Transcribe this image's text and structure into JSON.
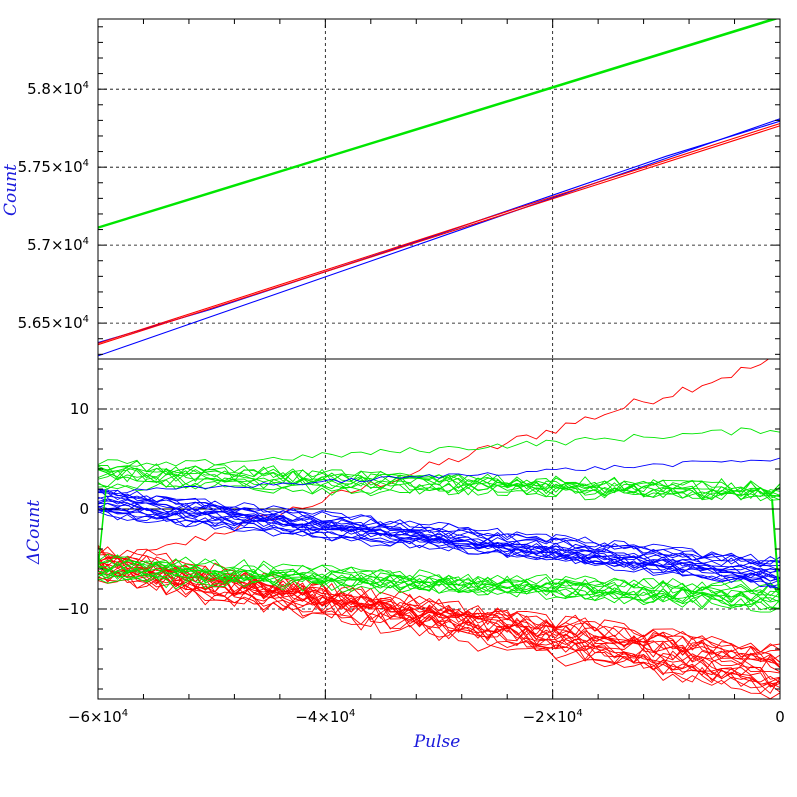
{
  "chart_data": [
    {
      "type": "line",
      "panel": "top",
      "ylabel": "Count",
      "xlim": [
        -60000,
        0
      ],
      "ylim": [
        56270,
        58450
      ],
      "grid": true,
      "y_ticks": [
        56500,
        57000,
        57500,
        58000
      ],
      "y_tick_labels": [
        {
          "m": "5.65×10",
          "e": "4"
        },
        {
          "m": "5.7×10",
          "e": "4"
        },
        {
          "m": "5.75×10",
          "e": "4"
        },
        {
          "m": "5.8×10",
          "e": "4"
        }
      ],
      "series": [
        {
          "color": "#00e600",
          "x": [
            -60000,
            0
          ],
          "y": [
            57115,
            58465
          ]
        },
        {
          "color": "#00e600",
          "x": [
            -60000,
            0
          ],
          "y": [
            57110,
            58458
          ]
        },
        {
          "color": "#0000ff",
          "x": [
            -60000,
            0
          ],
          "y": [
            56290,
            57810
          ]
        },
        {
          "color": "#0000ff",
          "x": [
            -60000,
            -50000,
            -40000,
            -30000,
            -20000,
            -10000,
            0
          ],
          "y": [
            56375,
            56590,
            56830,
            57070,
            57320,
            57570,
            57795
          ]
        },
        {
          "color": "#ff0000",
          "x": [
            -60000,
            0
          ],
          "y": [
            56370,
            57780
          ]
        },
        {
          "color": "#ff0000",
          "x": [
            -60000,
            0
          ],
          "y": [
            56362,
            57765
          ]
        }
      ]
    },
    {
      "type": "line",
      "panel": "bottom",
      "xlabel": "Pulse",
      "ylabel": "ΔCount",
      "xlim": [
        -60000,
        0
      ],
      "ylim": [
        -19,
        15
      ],
      "grid": true,
      "zero_line": true,
      "x_ticks": [
        -60000,
        -40000,
        -20000,
        0
      ],
      "x_tick_labels": [
        {
          "m": "−6×10",
          "e": "4"
        },
        {
          "m": "−4×10",
          "e": "4"
        },
        {
          "m": "−2×10",
          "e": "4"
        },
        {
          "m": "0",
          "e": ""
        }
      ],
      "y_ticks": [
        -10,
        0,
        10
      ],
      "y_tick_labels": [
        "−10",
        "0",
        "10"
      ],
      "series_groups": [
        {
          "color": "#ff0000",
          "count": 1,
          "start": [
            -6.2,
            -6.2
          ],
          "end": [
            15,
            15
          ],
          "noise": 0.6
        },
        {
          "color": "#ff0000",
          "count": 22,
          "start": [
            -7,
            -4
          ],
          "end": [
            -18.5,
            -14
          ],
          "noise": 0.9
        },
        {
          "color": "#00e600",
          "count": 1,
          "start": [
            3.8,
            3.8
          ],
          "end": [
            8,
            8
          ],
          "noise": 0.35
        },
        {
          "color": "#00e600",
          "count": 11,
          "start": [
            2.5,
            4.3
          ],
          "end": [
            0.8,
            2.3
          ],
          "noise": 0.7
        },
        {
          "color": "#00e600",
          "count": 13,
          "start": [
            -7,
            -5
          ],
          "end": [
            -9.8,
            -7.2
          ],
          "noise": 0.7
        },
        {
          "color": "#0000ff",
          "count": 1,
          "start": [
            1.5,
            1.5
          ],
          "end": [
            5,
            5
          ],
          "noise": 0.25
        },
        {
          "color": "#0000ff",
          "count": 20,
          "start": [
            -0.5,
            1.8
          ],
          "end": [
            -7.8,
            -5
          ],
          "noise": 0.45
        }
      ]
    }
  ]
}
